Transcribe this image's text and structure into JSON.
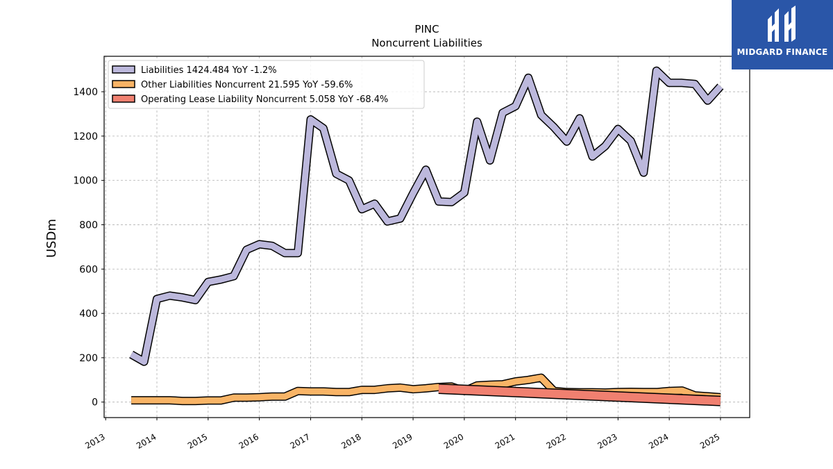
{
  "chart_data": {
    "type": "line",
    "title": "PINC",
    "subtitle": "Noncurrent  Liabilities",
    "ylabel": "USDm",
    "xlabel": "",
    "ylim": [
      -70,
      1560
    ],
    "xlim": [
      2012.97,
      2025.57
    ],
    "yticks": [
      0,
      200,
      400,
      600,
      800,
      1000,
      1200,
      1400
    ],
    "xticks": [
      "2013",
      "2014",
      "2015",
      "2016",
      "2017",
      "2018",
      "2019",
      "2020",
      "2021",
      "2022",
      "2023",
      "2024",
      "2025"
    ],
    "grid": true,
    "legend_position": "top-left",
    "series": [
      {
        "name": "Liabilities  1424.484 YoY -1.2%",
        "color": "#bcb8dc",
        "x": [
          2013.5,
          2013.75,
          2014.0,
          2014.25,
          2014.5,
          2014.75,
          2015.0,
          2015.25,
          2015.5,
          2015.75,
          2016.0,
          2016.25,
          2016.5,
          2016.75,
          2017.0,
          2017.25,
          2017.5,
          2017.75,
          2018.0,
          2018.25,
          2018.5,
          2018.75,
          2019.0,
          2019.25,
          2019.5,
          2019.75,
          2020.0,
          2020.25,
          2020.5,
          2020.75,
          2021.0,
          2021.25,
          2021.5,
          2021.75,
          2022.0,
          2022.25,
          2022.5,
          2022.75,
          2023.0,
          2023.25,
          2023.5,
          2023.75,
          2024.0,
          2024.25,
          2024.5,
          2024.75,
          2025.0
        ],
        "values": [
          215,
          182,
          465,
          480,
          472,
          460,
          542,
          553,
          568,
          687,
          712,
          705,
          672,
          672,
          1275,
          1235,
          1030,
          1000,
          870,
          895,
          815,
          828,
          942,
          1048,
          905,
          902,
          945,
          1265,
          1090,
          1305,
          1335,
          1463,
          1295,
          1240,
          1175,
          1280,
          1108,
          1155,
          1232,
          1178,
          1035,
          1495,
          1440,
          1440,
          1435,
          1360,
          1424
        ]
      },
      {
        "name": "Other Liabilities Noncurrent  21.595 YoY -59.6%",
        "color": "#f9b466",
        "x": [
          2013.5,
          2013.75,
          2014.0,
          2014.25,
          2014.5,
          2014.75,
          2015.0,
          2015.25,
          2015.5,
          2015.75,
          2016.0,
          2016.25,
          2016.5,
          2016.75,
          2017.0,
          2017.25,
          2017.5,
          2017.75,
          2018.0,
          2018.25,
          2018.5,
          2018.75,
          2019.0,
          2019.25,
          2019.5,
          2019.75,
          2020.0,
          2020.25,
          2020.5,
          2020.75,
          2021.0,
          2021.25,
          2021.5,
          2021.75,
          2022.0,
          2022.25,
          2022.5,
          2022.75,
          2023.0,
          2023.25,
          2023.5,
          2023.75,
          2024.0,
          2024.25,
          2024.5,
          2024.75,
          2025.0
        ],
        "values": [
          8,
          8,
          8,
          8,
          5,
          5,
          7,
          7,
          20,
          20,
          22,
          25,
          25,
          50,
          48,
          48,
          45,
          45,
          55,
          55,
          62,
          65,
          58,
          62,
          68,
          70,
          50,
          75,
          78,
          80,
          93,
          100,
          110,
          50,
          45,
          44,
          44,
          43,
          45,
          46,
          45,
          45,
          50,
          52,
          30,
          26,
          22
        ]
      },
      {
        "name": "Operating Lease Liability Noncurrent  5.058 YoY -68.4%",
        "color": "#f08070",
        "x": [
          2019.5,
          2025.0
        ],
        "values": [
          60,
          5
        ]
      }
    ]
  },
  "logo": {
    "text": "MIDGARD FINANCE"
  }
}
